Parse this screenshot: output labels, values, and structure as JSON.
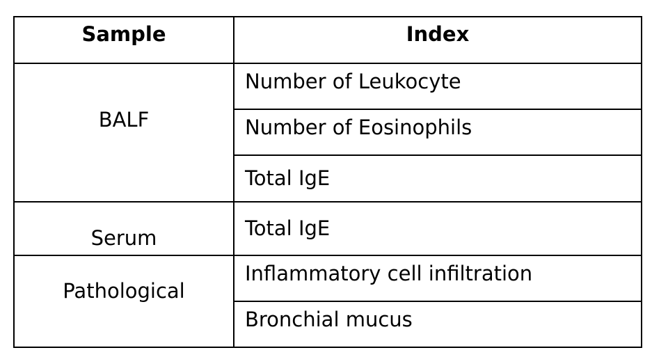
{
  "table": {
    "headers": {
      "sample": "Sample",
      "index": "Index"
    },
    "groups": [
      {
        "sample": "BALF",
        "indices": [
          "Number of Leukocyte",
          "Number of Eosinophils",
          "Total IgE"
        ]
      },
      {
        "sample": "Serum",
        "indices": [
          "Total IgE"
        ]
      },
      {
        "sample": "Pathological",
        "indices": [
          "Inflammatory cell infiltration",
          "Bronchial mucus"
        ]
      }
    ]
  }
}
